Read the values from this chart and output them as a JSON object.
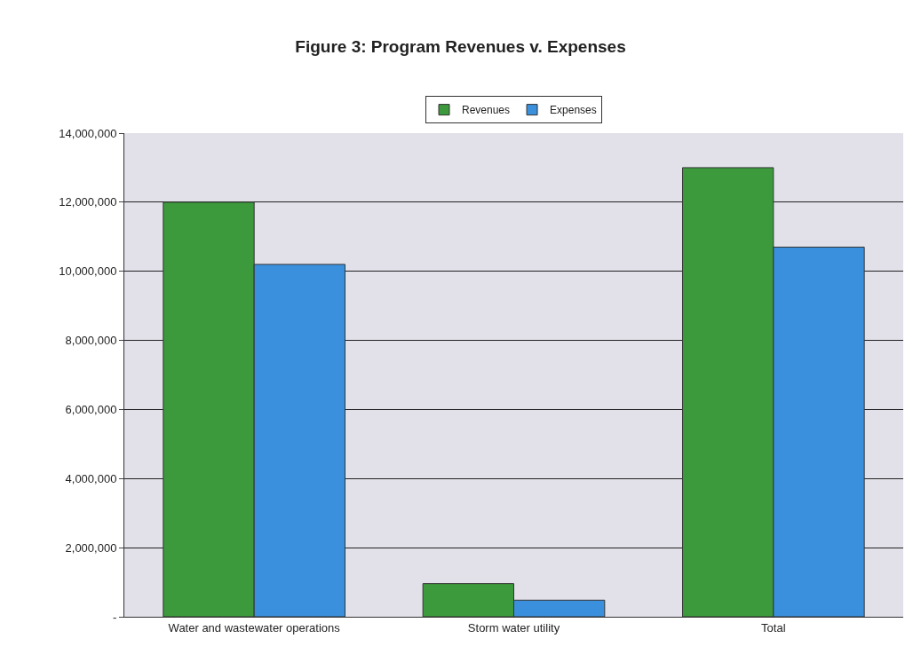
{
  "chart_data": {
    "type": "bar",
    "title": "Figure 3: Program Revenues v. Expenses",
    "categories": [
      "Water and wastewater operations",
      "Storm water utility",
      "Total"
    ],
    "series": [
      {
        "name": "Revenues",
        "color": "#3c9a3c",
        "values": [
          12000000,
          960000,
          13000000
        ]
      },
      {
        "name": "Expenses",
        "color": "#3a90dd",
        "values": [
          10200000,
          480000,
          10700000
        ]
      }
    ],
    "ylim": [
      0,
      14000000
    ],
    "yticks": [
      {
        "value": 0,
        "label": "-"
      },
      {
        "value": 2000000,
        "label": "2,000,000"
      },
      {
        "value": 4000000,
        "label": "4,000,000"
      },
      {
        "value": 6000000,
        "label": "6,000,000"
      },
      {
        "value": 8000000,
        "label": "8,000,000"
      },
      {
        "value": 10000000,
        "label": "10,000,000"
      },
      {
        "value": 12000000,
        "label": "12,000,000"
      },
      {
        "value": 14000000,
        "label": "14,000,000"
      }
    ],
    "grid": "y",
    "legend": "top"
  }
}
